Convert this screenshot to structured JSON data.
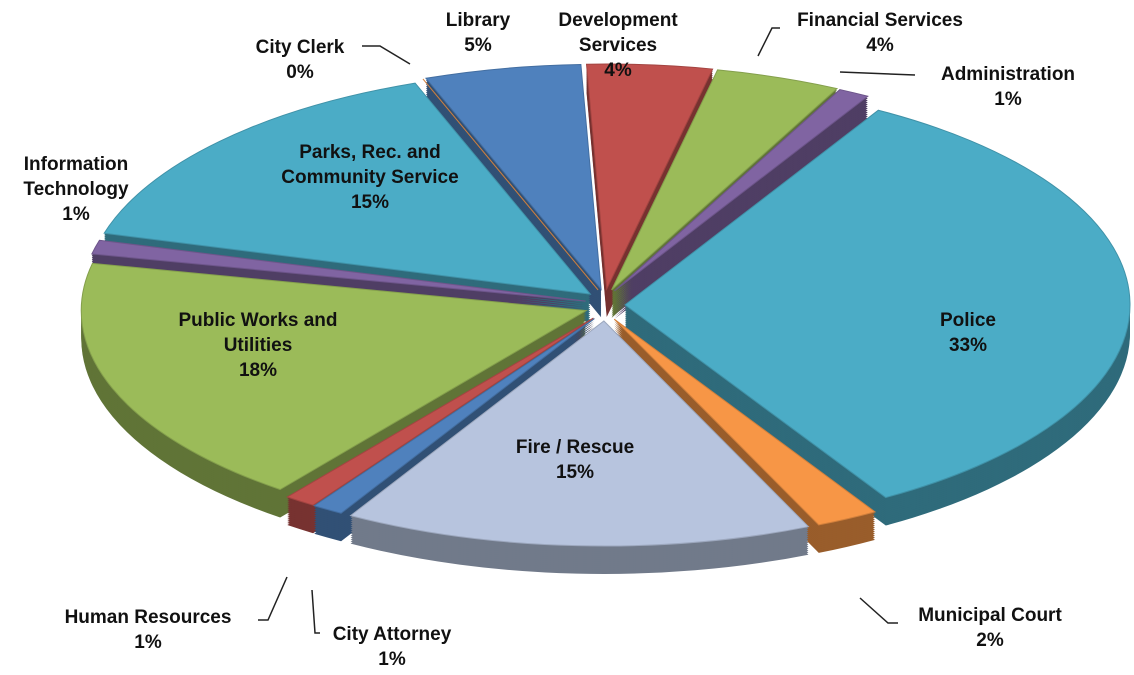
{
  "chart_data": {
    "type": "pie",
    "categories": [
      "Development Services",
      "Financial  Services",
      "Administration",
      "Police",
      "Municipal  Court",
      "Fire / Rescue",
      "City Attorney",
      "Human Resources",
      "Public Works and Utilities",
      "Information Technology",
      "Parks, Rec. and Community Service",
      "City Clerk",
      "Library"
    ],
    "values": [
      4,
      4,
      1,
      33,
      2,
      15,
      1,
      1,
      18,
      1,
      15,
      0,
      5
    ],
    "value_labels": [
      "4%",
      "4%",
      "1%",
      "33%",
      "2%",
      "15%",
      "1%",
      "1%",
      "18%",
      "1%",
      "15%",
      "0%",
      "5%"
    ],
    "colors": [
      "#c0504d",
      "#9bbb59",
      "#8064a2",
      "#4bacc6",
      "#f79646",
      "#b7c4de",
      "#4f81bd",
      "#c0504d",
      "#9bbb59",
      "#8064a2",
      "#4bacc6",
      "#f79646",
      "#4f81bd"
    ]
  }
}
